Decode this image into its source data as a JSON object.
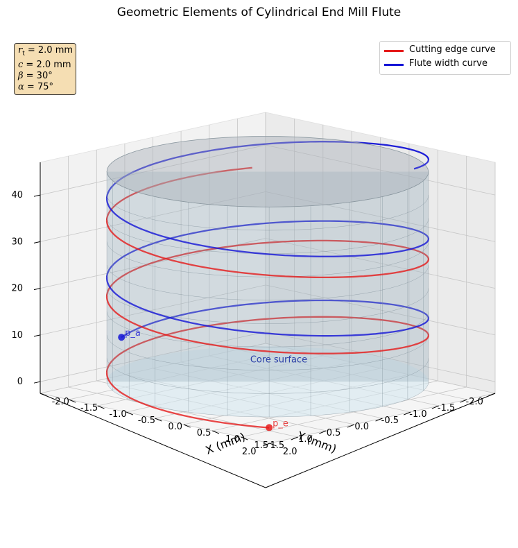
{
  "title": "Geometric Elements of Cylindrical End Mill Flute",
  "parameters": [
    {
      "sym": "r",
      "sub": "t",
      "value": " = 2.0 mm"
    },
    {
      "sym": "c",
      "sub": "",
      "value": " = 2.0 mm"
    },
    {
      "sym": "β",
      "sub": "",
      "value": " = 30°"
    },
    {
      "sym": "α",
      "sub": "",
      "value": " = 75°"
    }
  ],
  "legend": [
    {
      "label": "Cutting edge curve",
      "color": "#e51a1a"
    },
    {
      "label": "Flute width curve",
      "color": "#1414d6"
    }
  ],
  "annotations": {
    "core": "Core surface",
    "pe": "p_e",
    "pa": "p_a"
  },
  "chart_data": {
    "type": "line3d",
    "title": "Geometric Elements of Cylindrical End Mill Flute",
    "xlabel": "X (mm)",
    "ylabel": "Y (mm)",
    "zlabel": "",
    "xlim": [
      -2.0,
      2.0
    ],
    "ylim": [
      -2.0,
      2.0
    ],
    "zlim": [
      -2.5,
      47
    ],
    "x_ticks": [
      -2.0,
      -1.5,
      -1.0,
      -0.5,
      0.0,
      0.5,
      1.0,
      1.5,
      2.0
    ],
    "y_ticks": [
      -2.0,
      -1.5,
      -1.0,
      -0.5,
      0.0,
      0.5,
      1.0,
      1.5,
      2.0
    ],
    "z_ticks": [
      0,
      10,
      20,
      30,
      40
    ],
    "x_tick_labels": [
      "-2.0",
      "-1.5",
      "-1.0",
      "-0.5",
      "0.0",
      "0.5",
      "1.0",
      "1.5",
      "2.0"
    ],
    "y_tick_labels": [
      "-2.0",
      "-1.5",
      "-1.0",
      "-0.5",
      "0.0",
      "0.5",
      "1.0",
      "1.5",
      "2.0"
    ],
    "z_tick_labels": [
      "0",
      "10",
      "20",
      "30",
      "40"
    ],
    "grid": true,
    "view": {
      "elev": 20,
      "azim": 45
    },
    "core_cylinder": {
      "radius": 2.0,
      "z_range": [
        0,
        45
      ],
      "color": "#add8e6",
      "label": "Core surface"
    },
    "series": [
      {
        "name": "Cutting edge curve",
        "color": "#e51a1a",
        "radius": 2.0,
        "theta_start_deg": 45,
        "theta_end_deg": 940,
        "z_start": -2.3,
        "z_end": 38.3
      },
      {
        "name": "Flute width curve",
        "color": "#1414d6",
        "radius": 2.0,
        "theta_start_deg": 160,
        "theta_end_deg": 1060,
        "z_start": 6.3,
        "z_end": 48.8
      }
    ],
    "points": [
      {
        "label": "p_e",
        "x": 1.41,
        "y": 1.41,
        "z": -2.3,
        "color": "#e51a1a"
      },
      {
        "label": "p_a",
        "x": -1.88,
        "y": 0.68,
        "z": 6.3,
        "color": "#1414d6"
      }
    ],
    "legend_position": "top-right"
  }
}
